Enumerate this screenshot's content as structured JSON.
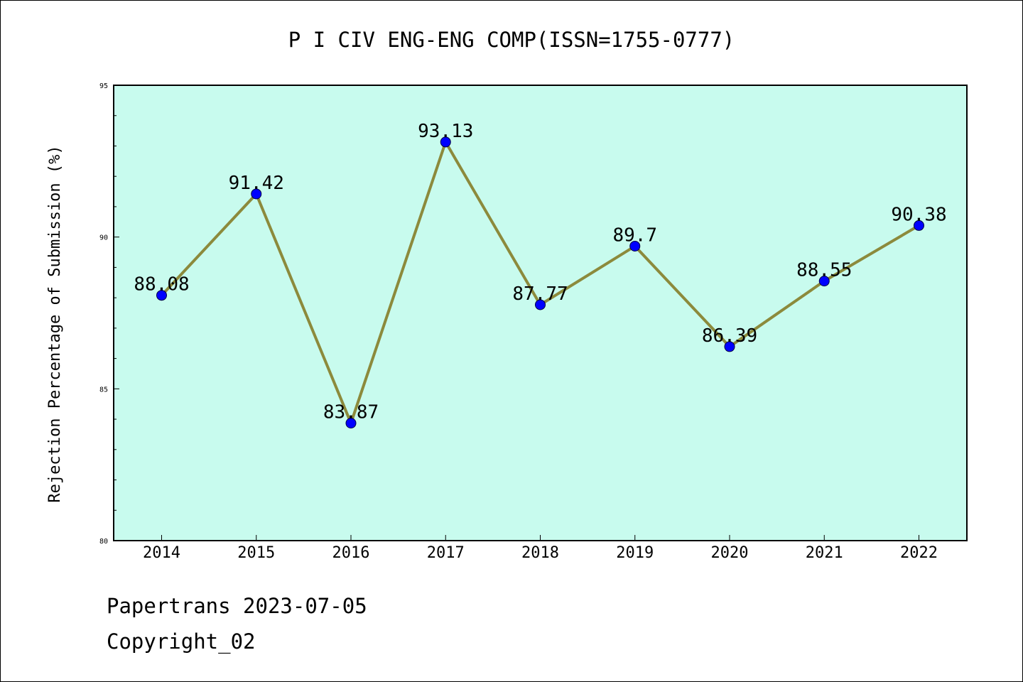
{
  "chart_data": {
    "type": "line",
    "title": "P I CIV ENG-ENG COMP(ISSN=1755-0777)",
    "xlabel": "",
    "ylabel": "Rejection Percentage of Submission (%)",
    "categories": [
      "2014",
      "2015",
      "2016",
      "2017",
      "2018",
      "2019",
      "2020",
      "2021",
      "2022"
    ],
    "values": [
      88.08,
      91.42,
      83.87,
      93.13,
      87.77,
      89.7,
      86.39,
      88.55,
      90.38
    ],
    "data_labels": [
      "88.08",
      "91.42",
      "83.87",
      "93.13",
      "87.77",
      "89.7",
      "86.39",
      "88.55",
      "90.38"
    ],
    "ylim": [
      80,
      95
    ],
    "yticks": [
      "80",
      "85",
      "90",
      "95"
    ],
    "grid": false,
    "colors": {
      "plot_background": "#c8fbee",
      "line": "#8c8a3c",
      "marker": "#0000ff"
    }
  },
  "footer": {
    "source": "Papertrans 2023-07-05",
    "copyright": "Copyright_02"
  }
}
